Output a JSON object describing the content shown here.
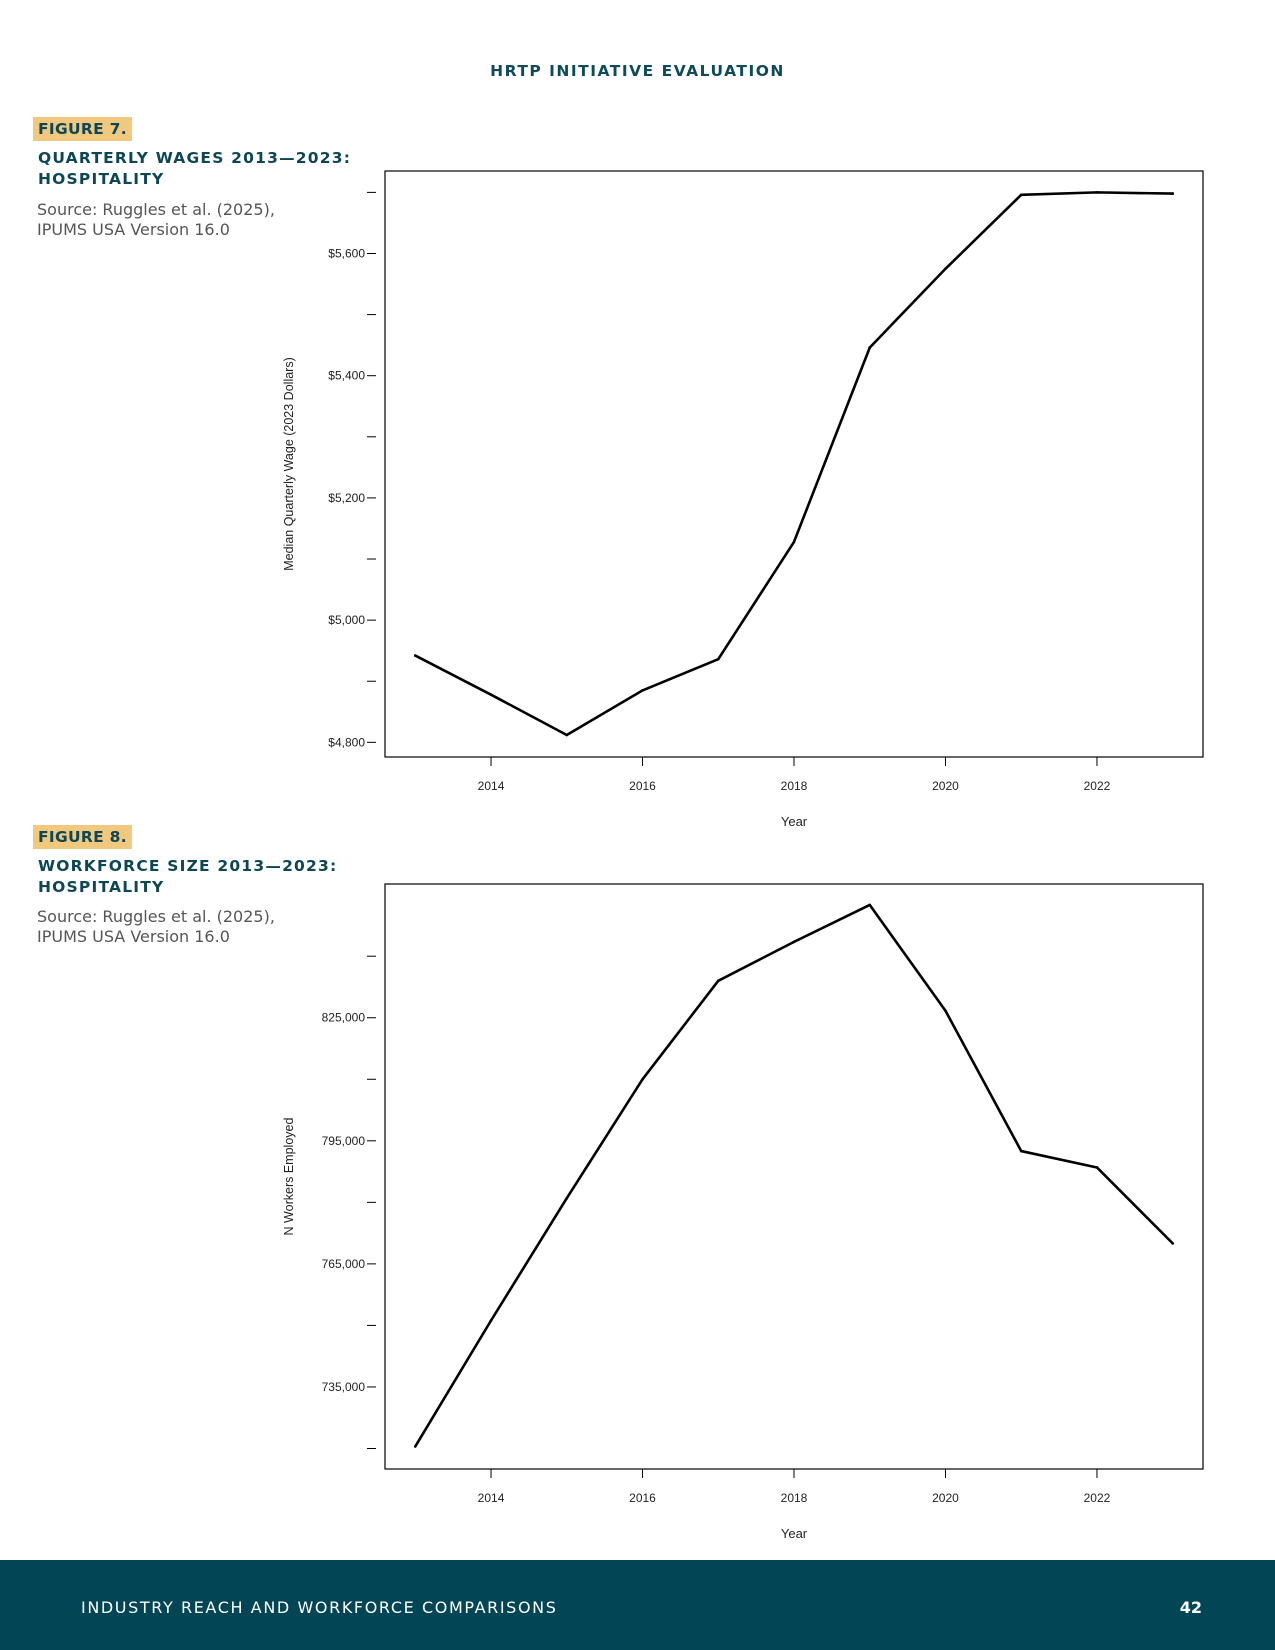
{
  "header": {
    "running_head": "HRTP INITIATIVE EVALUATION"
  },
  "figures": [
    {
      "tag": "FIGURE 7.",
      "title": "QUARTERLY WAGES 2013—2023: HOSPITALITY",
      "source": "Source: Ruggles et al. (2025), IPUMS USA Version 16.0"
    },
    {
      "tag": "FIGURE 8.",
      "title": "WORKFORCE SIZE 2013—2023: HOSPITALITY",
      "source": "Source: Ruggles et al. (2025), IPUMS USA Version 16.0"
    }
  ],
  "chart_data": [
    {
      "type": "line",
      "xlabel": "Year",
      "ylabel": "Median Quarterly Wage (2023 Dollars)",
      "x": [
        2013,
        2014,
        2015,
        2016,
        2017,
        2018,
        2019,
        2020,
        2021,
        2022,
        2023
      ],
      "values": [
        4942,
        4878,
        4812,
        4885,
        4936,
        5128,
        5446,
        5575,
        5696,
        5700,
        5698
      ],
      "xlim": [
        2012.6,
        2023.4
      ],
      "ylim": [
        4776,
        5735
      ],
      "x_ticks": [
        2014,
        2016,
        2018,
        2020,
        2022
      ],
      "y_ticks": [
        4800,
        4900,
        5000,
        5100,
        5200,
        5300,
        5400,
        5500,
        5600,
        5700
      ],
      "y_tick_labels": [
        {
          "value": 4800,
          "label": "$4,800"
        },
        {
          "value": 5000,
          "label": "$5,000"
        },
        {
          "value": 5200,
          "label": "$5,200"
        },
        {
          "value": 5400,
          "label": "$5,400"
        },
        {
          "value": 5600,
          "label": "$5,600"
        }
      ],
      "grid": false,
      "line_color": "#000000"
    },
    {
      "type": "line",
      "xlabel": "Year",
      "ylabel": "N Workers Employed",
      "x": [
        2013,
        2014,
        2015,
        2016,
        2017,
        2018,
        2019,
        2020,
        2021,
        2022,
        2023
      ],
      "values": [
        720500,
        751200,
        781000,
        810000,
        834000,
        843500,
        852500,
        826700,
        792500,
        788500,
        770000
      ],
      "xlim": [
        2012.6,
        2023.4
      ],
      "ylim": [
        715000,
        857600
      ],
      "x_ticks": [
        2014,
        2016,
        2018,
        2020,
        2022
      ],
      "y_ticks": [
        720000,
        735000,
        750000,
        765000,
        780000,
        795000,
        810000,
        825000,
        840000
      ],
      "y_tick_labels": [
        {
          "value": 735000,
          "label": "735,000"
        },
        {
          "value": 765000,
          "label": "765,000"
        },
        {
          "value": 795000,
          "label": "795,000"
        },
        {
          "value": 825000,
          "label": "825,000"
        }
      ],
      "grid": false,
      "line_color": "#000000"
    }
  ],
  "footer": {
    "section": "INDUSTRY REACH AND WORKFORCE COMPARISONS",
    "page_number": "42"
  }
}
